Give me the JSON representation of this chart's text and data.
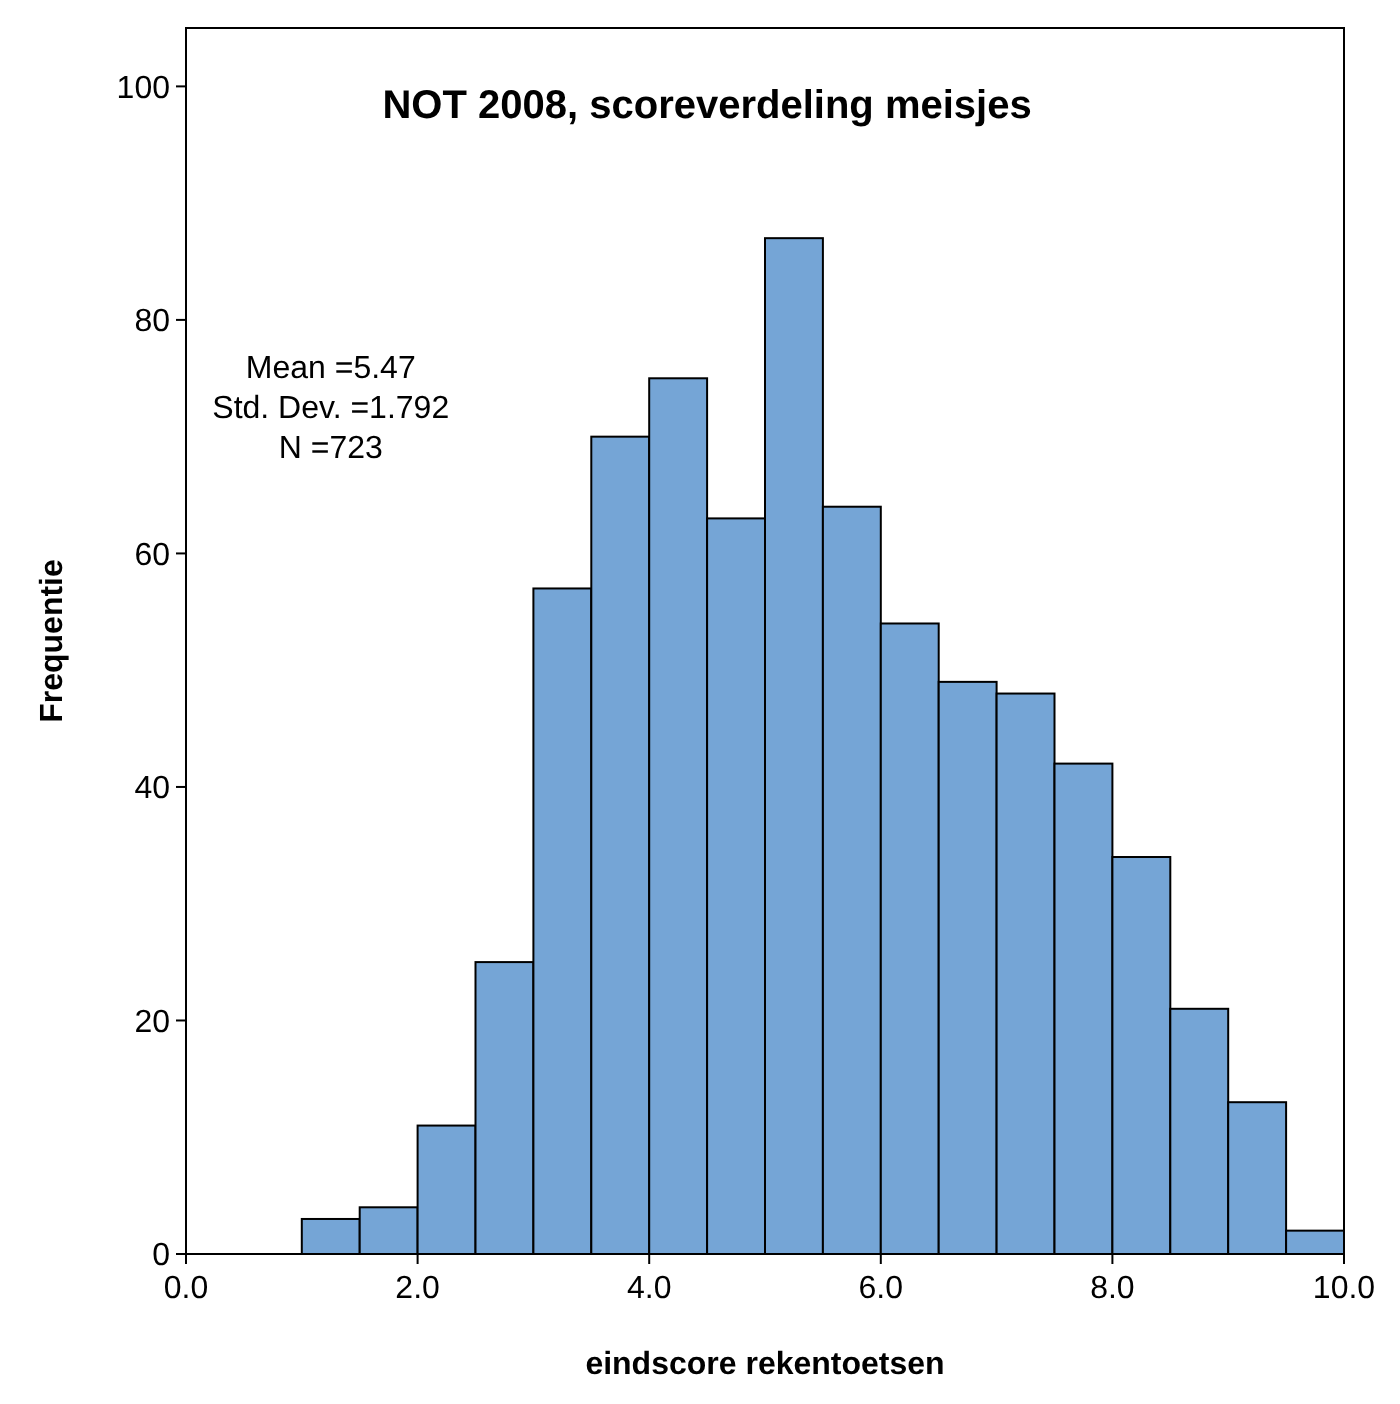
{
  "chart_data": {
    "type": "histogram",
    "title": "NOT 2008, scoreverdeling meisjes",
    "xlabel": "eindscore rekentoetsen",
    "ylabel": "Frequentie",
    "annotations": [
      "Mean =5.47",
      "Std. Dev. =1.792",
      "N =723"
    ],
    "bins": [
      1.0,
      1.5,
      2.0,
      2.5,
      3.0,
      3.5,
      4.0,
      4.5,
      5.0,
      5.5,
      6.0,
      6.5,
      7.0,
      7.5,
      8.0,
      8.5,
      9.0,
      9.5,
      10.0
    ],
    "values": [
      3,
      4,
      11,
      25,
      57,
      70,
      75,
      63,
      87,
      64,
      54,
      49,
      48,
      42,
      34,
      21,
      13,
      2
    ],
    "color": "#75a5d6",
    "xlim": [
      0,
      10
    ],
    "xticks": [
      {
        "value": 0,
        "label": "0.0"
      },
      {
        "value": 2,
        "label": "2.0"
      },
      {
        "value": 4,
        "label": "4.0"
      },
      {
        "value": 6,
        "label": "6.0"
      },
      {
        "value": 8,
        "label": "8.0"
      },
      {
        "value": 10,
        "label": "10.0"
      }
    ],
    "ylim": [
      0,
      105
    ],
    "yticks": [
      0,
      20,
      40,
      60,
      80,
      100
    ],
    "grid": false
  }
}
